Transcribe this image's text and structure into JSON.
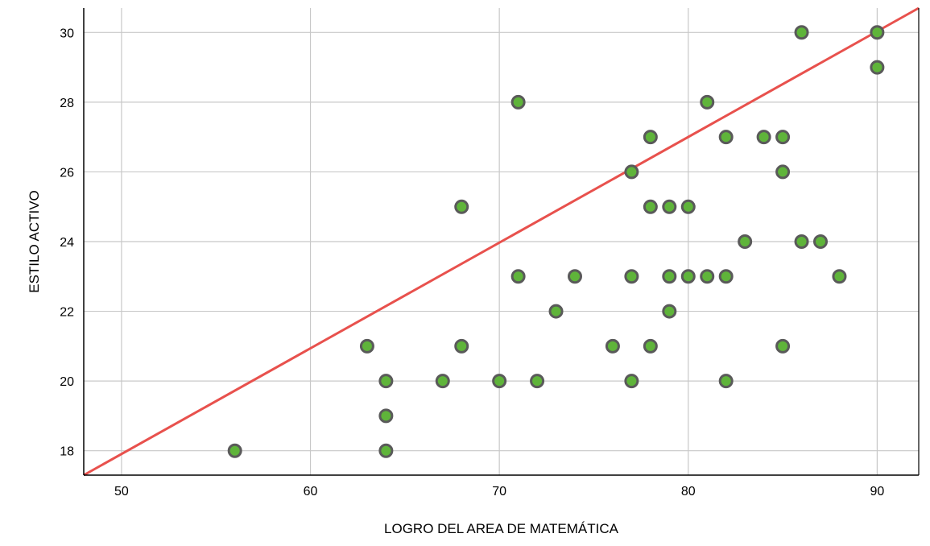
{
  "chart_data": {
    "type": "scatter",
    "title": "",
    "xlabel": "LOGRO DEL AREA DE MATEMÁTICA",
    "ylabel": "ESTILO ACTIVO",
    "xlim": [
      48,
      92.2
    ],
    "ylim": [
      17.3,
      30.7
    ],
    "xticks": [
      "50",
      "60",
      "70",
      "80",
      "90"
    ],
    "yticks": [
      "18",
      "20",
      "22",
      "24",
      "26",
      "28",
      "30"
    ],
    "grid": true,
    "legend": "none",
    "colors": {
      "point_fill": "#5FB43A",
      "point_stroke": "#5A5A5A",
      "line": "#E8514D",
      "grid": "#C8C8C8",
      "axis": "#000000"
    },
    "reference_line": {
      "from": [
        48,
        17.3
      ],
      "to": [
        92.2,
        30.7
      ]
    },
    "points": [
      {
        "x": 56,
        "y": 18
      },
      {
        "x": 63,
        "y": 21
      },
      {
        "x": 64,
        "y": 20
      },
      {
        "x": 64,
        "y": 19
      },
      {
        "x": 64,
        "y": 18
      },
      {
        "x": 67,
        "y": 20
      },
      {
        "x": 68,
        "y": 25
      },
      {
        "x": 68,
        "y": 21
      },
      {
        "x": 70,
        "y": 20
      },
      {
        "x": 71,
        "y": 28
      },
      {
        "x": 71,
        "y": 23
      },
      {
        "x": 72,
        "y": 20
      },
      {
        "x": 73,
        "y": 22
      },
      {
        "x": 74,
        "y": 23
      },
      {
        "x": 76,
        "y": 21
      },
      {
        "x": 77,
        "y": 26
      },
      {
        "x": 77,
        "y": 23
      },
      {
        "x": 77,
        "y": 20
      },
      {
        "x": 78,
        "y": 27
      },
      {
        "x": 78,
        "y": 25
      },
      {
        "x": 78,
        "y": 21
      },
      {
        "x": 79,
        "y": 25
      },
      {
        "x": 79,
        "y": 23
      },
      {
        "x": 79,
        "y": 22
      },
      {
        "x": 80,
        "y": 25
      },
      {
        "x": 80,
        "y": 23
      },
      {
        "x": 81,
        "y": 28
      },
      {
        "x": 81,
        "y": 23
      },
      {
        "x": 82,
        "y": 27
      },
      {
        "x": 82,
        "y": 23
      },
      {
        "x": 82,
        "y": 20
      },
      {
        "x": 83,
        "y": 24
      },
      {
        "x": 84,
        "y": 27
      },
      {
        "x": 85,
        "y": 27
      },
      {
        "x": 85,
        "y": 26
      },
      {
        "x": 85,
        "y": 21
      },
      {
        "x": 86,
        "y": 30
      },
      {
        "x": 86,
        "y": 24
      },
      {
        "x": 87,
        "y": 24
      },
      {
        "x": 88,
        "y": 23
      },
      {
        "x": 90,
        "y": 30
      },
      {
        "x": 90,
        "y": 29
      }
    ]
  }
}
